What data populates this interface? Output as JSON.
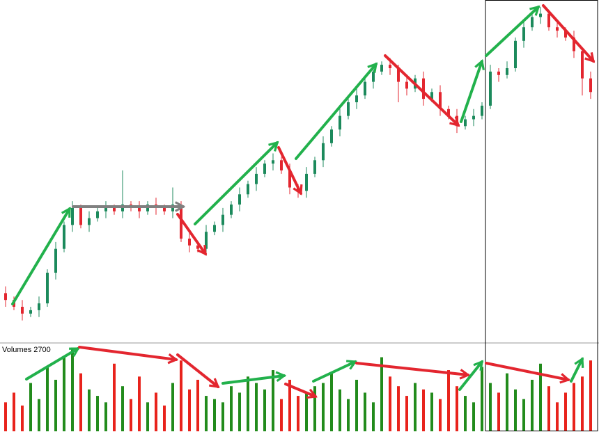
{
  "chart_data": [
    {
      "type": "candlestick",
      "up_color": "#1c8a5c",
      "down_color": "#e3262f",
      "ylim": [
        0,
        100
      ],
      "open": [
        14,
        12,
        10,
        8,
        9,
        11,
        20,
        27,
        34,
        39,
        34,
        36,
        38,
        39,
        38,
        40,
        39,
        38,
        40,
        39,
        38,
        40,
        30,
        28,
        27,
        32,
        34,
        37,
        40,
        43,
        46,
        49,
        52,
        53,
        50,
        45,
        44,
        49,
        53,
        58,
        62,
        66,
        70,
        72,
        76,
        79,
        81,
        80,
        76,
        74,
        77,
        71,
        73,
        68,
        66,
        63,
        65,
        66,
        69,
        79,
        78,
        80,
        88,
        92,
        95,
        96,
        92,
        91,
        89,
        85,
        77
      ],
      "high": [
        16,
        13,
        12,
        10,
        13,
        21,
        29,
        35,
        41,
        40,
        38,
        39,
        41,
        40,
        50,
        41,
        41,
        41,
        42,
        40,
        45,
        41,
        32,
        29,
        34,
        35,
        39,
        41,
        45,
        47,
        51,
        53,
        55,
        54,
        52,
        46,
        51,
        54,
        60,
        63,
        68,
        71,
        74,
        77,
        81,
        82,
        83,
        81,
        78,
        78,
        79,
        74,
        75,
        69,
        68,
        66,
        68,
        70,
        81,
        80,
        82,
        89,
        94,
        96,
        98,
        97,
        94,
        92,
        91,
        86,
        79
      ],
      "low": [
        10,
        9,
        6,
        7,
        7,
        10,
        18,
        26,
        32,
        33,
        32,
        35,
        36,
        37,
        36,
        38,
        36,
        37,
        37,
        37,
        36,
        29,
        26,
        26,
        25,
        31,
        32,
        36,
        38,
        42,
        44,
        48,
        50,
        49,
        43,
        42,
        42,
        48,
        51,
        57,
        60,
        65,
        68,
        71,
        74,
        78,
        78,
        70,
        72,
        73,
        69,
        70,
        66,
        65,
        61,
        62,
        63,
        65,
        68,
        76,
        77,
        79,
        86,
        91,
        93,
        91,
        89,
        88,
        83,
        72,
        71
      ],
      "close": [
        12,
        10,
        8,
        9,
        11,
        20,
        27,
        34,
        39,
        34,
        36,
        38,
        39,
        38,
        40,
        39,
        38,
        40,
        39,
        38,
        40,
        30,
        28,
        27,
        32,
        34,
        37,
        40,
        43,
        46,
        49,
        52,
        53,
        50,
        45,
        44,
        49,
        53,
        58,
        62,
        66,
        70,
        72,
        76,
        79,
        81,
        80,
        76,
        74,
        77,
        71,
        73,
        68,
        66,
        63,
        65,
        66,
        69,
        79,
        78,
        80,
        88,
        92,
        95,
        96,
        92,
        91,
        89,
        85,
        77,
        73
      ]
    },
    {
      "type": "bar",
      "title": "Volumes 2700",
      "up_color": "#228b1c",
      "down_color": "#e8231c",
      "ylim": [
        0,
        2700
      ],
      "values": [
        900,
        1200,
        800,
        1500,
        1000,
        2000,
        1600,
        2300,
        2600,
        1800,
        1300,
        1100,
        900,
        2100,
        1400,
        1000,
        1700,
        900,
        1200,
        800,
        1500,
        2200,
        1300,
        1600,
        1100,
        1000,
        900,
        1400,
        1200,
        1700,
        1500,
        1300,
        1900,
        1000,
        1600,
        1100,
        1200,
        1400,
        1500,
        1800,
        1300,
        1000,
        1600,
        1200,
        900,
        2300,
        1700,
        1400,
        1100,
        1500,
        1300,
        1200,
        1000,
        1900,
        1400,
        1100,
        900,
        2000,
        1500,
        1200,
        1800,
        1300,
        1000,
        1600,
        2100,
        1400,
        900,
        1200,
        1500,
        1700,
        2200
      ]
    }
  ]
}
